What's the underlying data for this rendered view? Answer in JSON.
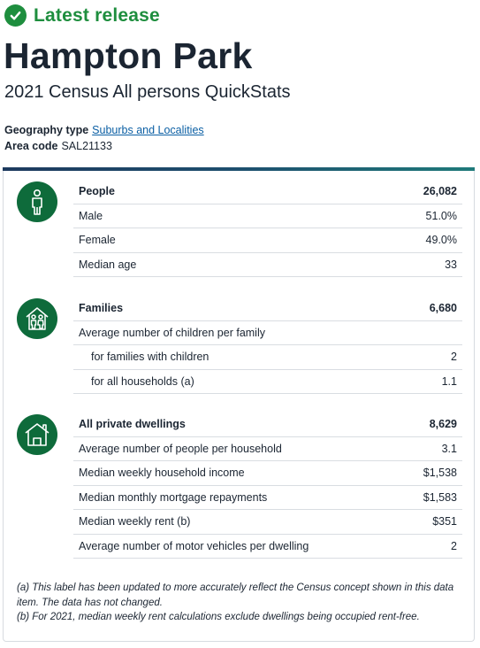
{
  "release": {
    "label": "Latest release"
  },
  "page": {
    "title": "Hampton Park",
    "subtitle": "2021 Census All persons QuickStats"
  },
  "geography": {
    "type_label": "Geography type",
    "type_value": "Suburbs and Localities",
    "code_label": "Area code",
    "code_value": "SAL21133"
  },
  "sections": {
    "people": {
      "icon": "person-icon",
      "heading": {
        "label": "People",
        "value": "26,082"
      },
      "rows": [
        {
          "label": "Male",
          "value": "51.0%"
        },
        {
          "label": "Female",
          "value": "49.0%"
        },
        {
          "label": "Median age",
          "value": "33"
        }
      ]
    },
    "families": {
      "icon": "family-house-icon",
      "heading": {
        "label": "Families",
        "value": "6,680"
      },
      "rows": [
        {
          "label": "Average number of children per family",
          "value": ""
        },
        {
          "label": "for families with children",
          "value": "2"
        },
        {
          "label": "for all households (a)",
          "value": "1.1"
        }
      ]
    },
    "dwellings": {
      "icon": "house-icon",
      "heading": {
        "label": "All private dwellings",
        "value": "8,629"
      },
      "rows": [
        {
          "label": "Average number of people per household",
          "value": "3.1"
        },
        {
          "label": "Median weekly household income",
          "value": "$1,538"
        },
        {
          "label": "Median monthly mortgage repayments",
          "value": "$1,583"
        },
        {
          "label": "Median weekly rent (b)",
          "value": "$351"
        },
        {
          "label": "Average number of motor vehicles per dwelling",
          "value": "2"
        }
      ]
    }
  },
  "notes": {
    "a": "(a) This label has been updated to more accurately reflect the Census concept shown in this data item. The data has not changed.",
    "b": "(b) For 2021, median weekly rent calculations exclude dwellings being occupied rent-free."
  },
  "colors": {
    "release_green": "#1e8e3e",
    "icon_green": "#0e6b3b",
    "link_blue": "#0b5fa4",
    "text": "#1b2532",
    "bar_start": "#1d3a5e",
    "bar_end": "#1f7a7a"
  }
}
